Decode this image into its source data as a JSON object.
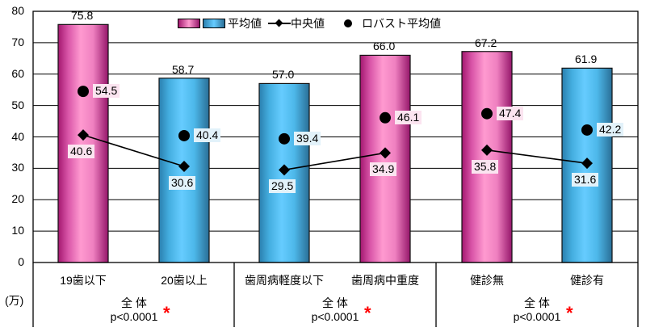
{
  "chart_data": {
    "type": "bar",
    "title": "",
    "ylabel": "(万)",
    "ylim": [
      0,
      80
    ],
    "yticks": [
      0,
      10,
      20,
      30,
      40,
      50,
      60,
      70,
      80
    ],
    "grid": true,
    "legend_position": "top",
    "legend": [
      "平均値",
      "中央値",
      "ロバスト平均値"
    ],
    "categories": [
      "19歯以下",
      "20歯以上",
      "歯周病軽度以下",
      "歯周病中重度",
      "健診無",
      "健診有"
    ],
    "groups": [
      {
        "label": "全 体",
        "p_value": "p<0.0001",
        "significance": "*",
        "categories": [
          "19歯以下",
          "20歯以上"
        ]
      },
      {
        "label": "全 体",
        "p_value": "p<0.0001",
        "significance": "*",
        "categories": [
          "歯周病軽度以下",
          "歯周病中重度"
        ]
      },
      {
        "label": "全 体",
        "p_value": "p<0.0001",
        "significance": "*",
        "categories": [
          "健診無",
          "健診有"
        ]
      }
    ],
    "series": [
      {
        "name": "平均値",
        "type": "bar",
        "values": [
          75.8,
          58.7,
          57.0,
          66.0,
          67.2,
          61.9
        ],
        "colors": [
          "#e86db8",
          "#4fb8e6",
          "#4fb8e6",
          "#e86db8",
          "#e86db8",
          "#4fb8e6"
        ]
      },
      {
        "name": "中央値",
        "type": "line",
        "marker": "diamond",
        "values": [
          40.6,
          30.6,
          29.5,
          34.9,
          35.8,
          31.6
        ]
      },
      {
        "name": "ロバスト平均値",
        "type": "scatter",
        "marker": "circle",
        "values": [
          54.5,
          40.4,
          39.4,
          46.1,
          47.4,
          42.2
        ]
      }
    ]
  },
  "labels": {
    "y_unit": "(万)",
    "yticks": [
      "0",
      "10",
      "20",
      "30",
      "40",
      "50",
      "60",
      "70",
      "80"
    ],
    "legend_mean": "平均値",
    "legend_median": "中央値",
    "legend_robust": "ロバスト平均値",
    "cats": [
      "19歯以下",
      "20歯以上",
      "歯周病軽度以下",
      "歯周病中重度",
      "健診無",
      "健診有"
    ],
    "mean_text": [
      "75.8",
      "58.7",
      "57.0",
      "66.0",
      "67.2",
      "61.9"
    ],
    "median_text": [
      "40.6",
      "30.6",
      "29.5",
      "34.9",
      "35.8",
      "31.6"
    ],
    "robust_text": [
      "54.5",
      "40.4",
      "39.4",
      "46.1",
      "47.4",
      "42.2"
    ],
    "group_label": "全 体",
    "group_p": "p<0.0001",
    "star": "*"
  }
}
